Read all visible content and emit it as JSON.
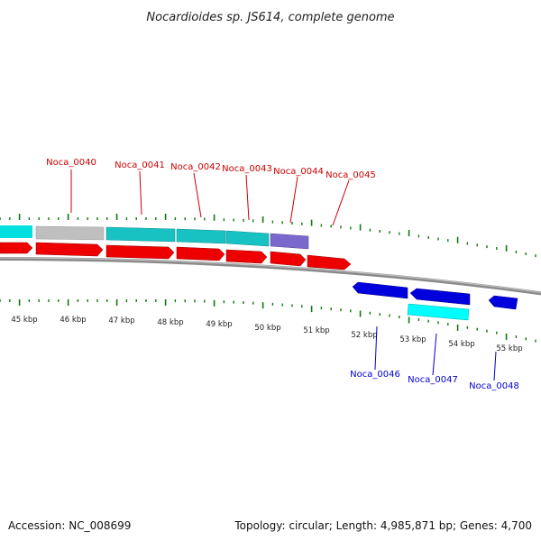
{
  "title": "Nocardioides sp. JS614, complete genome",
  "footer": {
    "accession": "Accession: NC_008699",
    "summary": "Topology: circular; Length: 4,985,871 bp; Genes: 4,700"
  },
  "colors": {
    "forward_gene": "#ff0000",
    "reverse_gene": "#0000ee",
    "forward_label": "#cc0000",
    "reverse_label": "#0000cc",
    "tick": "#117711",
    "backbone": "#8a8a8a",
    "cyan_feature": "#00c8c8",
    "gray_feature": "#bdbdbd",
    "purple_feature": "#7b68cc"
  },
  "scale_ticks": [
    "45 kbp",
    "46 kbp",
    "47 kbp",
    "48 kbp",
    "49 kbp",
    "50 kbp",
    "51 kbp",
    "52 kbp",
    "53 kbp",
    "54 kbp",
    "55 kbp"
  ],
  "gene_labels_forward": [
    "Noca_0040",
    "Noca_0041",
    "Noca_0042",
    "Noca_0043",
    "Noca_0044",
    "Noca_0045"
  ],
  "gene_labels_reverse": [
    "Noca_0046",
    "Noca_0047",
    "Noca_0048"
  ]
}
